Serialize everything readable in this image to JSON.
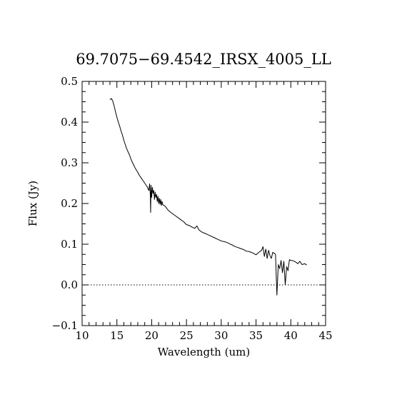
{
  "chart_data": {
    "type": "line",
    "title": "69.7075−69.4542_IRSX_4005_LL",
    "xlabel": "Wavelength (um)",
    "ylabel": "Flux (Jy)",
    "xlim": [
      10,
      45
    ],
    "ylim": [
      -0.1,
      0.5
    ],
    "xticks": [
      10,
      15,
      20,
      25,
      30,
      35,
      40,
      45
    ],
    "xtick_labels": [
      "10",
      "15",
      "20",
      "25",
      "30",
      "35",
      "40",
      "45"
    ],
    "yticks": [
      -0.1,
      0.0,
      0.1,
      0.2,
      0.3,
      0.4,
      0.5
    ],
    "ytick_labels": [
      "−0.1",
      "0.0",
      "0.1",
      "0.2",
      "0.3",
      "0.4",
      "0.5"
    ],
    "reference_line": {
      "y": 0.0,
      "style": "dotted"
    },
    "grid": false,
    "series": [
      {
        "x": [
          14.0,
          14.2,
          14.4,
          14.6,
          14.8,
          15.0,
          15.2,
          15.4,
          15.6,
          15.8,
          16.0,
          16.2,
          16.4,
          16.6,
          16.8,
          17.0,
          17.2,
          17.4,
          17.6,
          17.8,
          18.0,
          18.2,
          18.4,
          18.6,
          18.8,
          19.0,
          19.2,
          19.4,
          19.5,
          19.6,
          19.7,
          19.8,
          19.85,
          19.9,
          20.0,
          20.1,
          20.2,
          20.3,
          20.4,
          20.5,
          20.6,
          20.7,
          20.8,
          20.9,
          21.0,
          21.1,
          21.2,
          21.3,
          21.4,
          21.5,
          21.6,
          21.8,
          22.0,
          22.3,
          22.6,
          23.0,
          23.4,
          23.8,
          24.2,
          24.6,
          25.0,
          25.4,
          25.8,
          26.2,
          26.5,
          26.8,
          27.2,
          27.6,
          28.0,
          28.5,
          29.0,
          29.5,
          30.0,
          30.5,
          31.0,
          31.3,
          31.6,
          32.0,
          32.4,
          32.8,
          33.2,
          33.6,
          34.0,
          34.3,
          34.6,
          35.0,
          35.4,
          35.8,
          36.0,
          36.2,
          36.4,
          36.6,
          36.8,
          37.0,
          37.2,
          37.4,
          37.6,
          37.8,
          38.0,
          38.2,
          38.4,
          38.6,
          38.8,
          39.0,
          39.2,
          39.4,
          39.6,
          39.8,
          40.0,
          40.2,
          40.5,
          40.8,
          41.0,
          41.3,
          41.6,
          42.0,
          42.3
        ],
        "y": [
          0.455,
          0.458,
          0.452,
          0.44,
          0.425,
          0.412,
          0.4,
          0.39,
          0.378,
          0.368,
          0.355,
          0.345,
          0.335,
          0.327,
          0.32,
          0.31,
          0.302,
          0.295,
          0.288,
          0.282,
          0.277,
          0.27,
          0.265,
          0.26,
          0.255,
          0.25,
          0.245,
          0.24,
          0.235,
          0.232,
          0.248,
          0.222,
          0.178,
          0.245,
          0.215,
          0.24,
          0.225,
          0.232,
          0.21,
          0.228,
          0.215,
          0.222,
          0.205,
          0.218,
          0.2,
          0.213,
          0.198,
          0.21,
          0.195,
          0.205,
          0.197,
          0.195,
          0.192,
          0.185,
          0.18,
          0.175,
          0.17,
          0.165,
          0.16,
          0.155,
          0.148,
          0.146,
          0.142,
          0.139,
          0.145,
          0.135,
          0.13,
          0.127,
          0.124,
          0.12,
          0.116,
          0.112,
          0.108,
          0.106,
          0.103,
          0.1,
          0.098,
          0.094,
          0.092,
          0.089,
          0.087,
          0.083,
          0.082,
          0.08,
          0.078,
          0.074,
          0.08,
          0.085,
          0.094,
          0.07,
          0.088,
          0.065,
          0.085,
          0.072,
          0.065,
          0.08,
          0.078,
          0.075,
          -0.025,
          0.05,
          0.04,
          0.06,
          0.03,
          0.058,
          0.0,
          0.045,
          0.035,
          0.062,
          0.06,
          0.06,
          0.058,
          0.055,
          0.052,
          0.058,
          0.05,
          0.052,
          0.049
        ]
      }
    ]
  }
}
